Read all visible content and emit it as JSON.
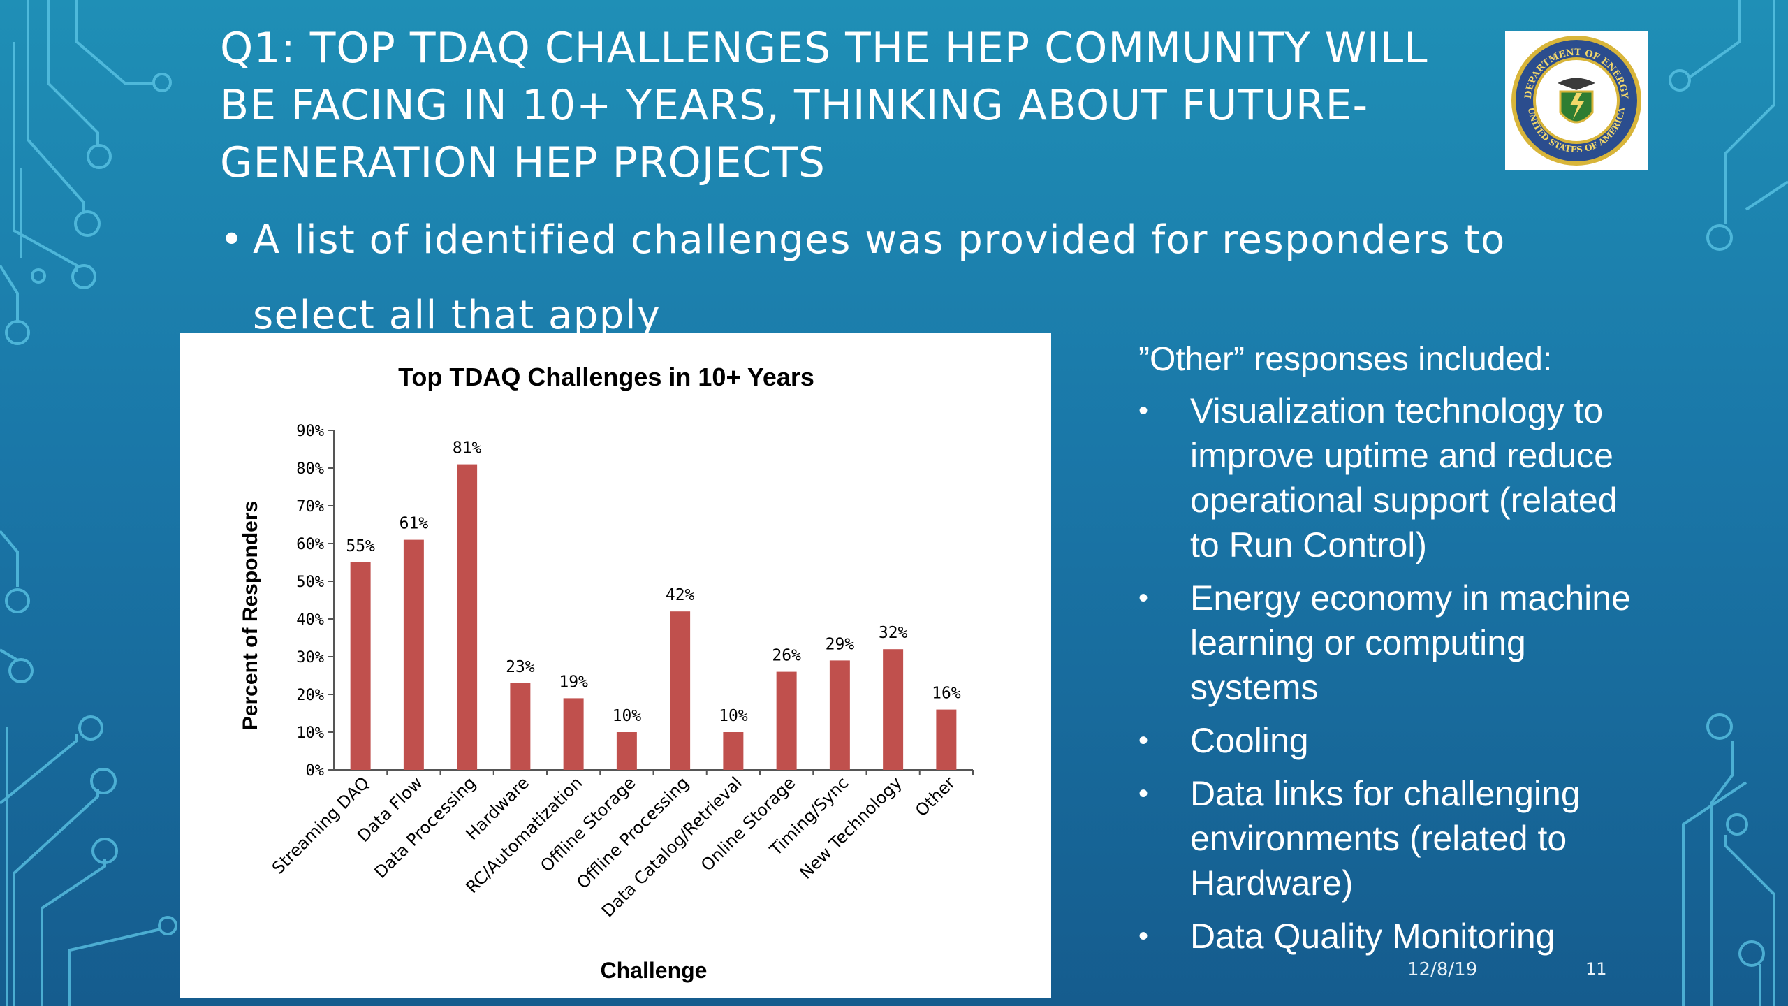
{
  "slide": {
    "title_lines": [
      "Q1: TOP TDAQ CHALLENGES THE HEP COMMUNITY WILL",
      "BE FACING IN 10+ YEARS, THINKING ABOUT FUTURE-",
      "GENERATION HEP PROJECTS"
    ],
    "bullet_marker": "•",
    "bullet_lines": [
      "A list of identified challenges was provided for responders to",
      "select all that apply"
    ],
    "logo": {
      "icon": "department-of-energy-seal-icon",
      "seal_text_top": "DEPARTMENT OF ENERGY",
      "seal_text_bottom": "UNITED STATES OF AMERICA"
    },
    "footer_date": "12/8/19",
    "page_number": "11"
  },
  "other_responses": {
    "heading": "”Other” responses included:",
    "marker": "•",
    "items": [
      [
        "Visualization technology to",
        "improve uptime and reduce",
        "operational support (related",
        "to Run Control)"
      ],
      [
        "Energy economy in machine",
        "learning or computing",
        "systems"
      ],
      [
        "Cooling"
      ],
      [
        "Data links for challenging",
        "environments (related to",
        "Hardware)"
      ],
      [
        "Data Quality Monitoring"
      ]
    ]
  },
  "colors": {
    "bar": "#c0504d",
    "background_top": "#1f8fb6",
    "background_bottom": "#155c8e",
    "circuit": "#5ec8e8"
  },
  "chart_data": {
    "type": "bar",
    "title": "Top TDAQ Challenges in 10+ Years",
    "xlabel": "Challenge",
    "ylabel": "Percent of Responders",
    "ylim": [
      0,
      90
    ],
    "yticks": [
      0,
      10,
      20,
      30,
      40,
      50,
      60,
      70,
      80,
      90
    ],
    "ytick_labels": [
      "0%",
      "10%",
      "20%",
      "30%",
      "40%",
      "50%",
      "60%",
      "70%",
      "80%",
      "90%"
    ],
    "categories": [
      "Streaming DAQ",
      "Data Flow",
      "Data Processing",
      "Hardware",
      "RC/Automatization",
      "Offline Storage",
      "Offline Processing",
      "Data Catalog/Retrieval",
      "Online Storage",
      "Timing/Sync",
      "New Technology",
      "Other"
    ],
    "values": [
      55,
      61,
      81,
      23,
      19,
      10,
      42,
      10,
      26,
      29,
      32,
      16
    ],
    "value_labels": [
      "55%",
      "61%",
      "81%",
      "23%",
      "19%",
      "10%",
      "42%",
      "10%",
      "26%",
      "29%",
      "32%",
      "16%"
    ],
    "grid": false,
    "legend": "none"
  }
}
